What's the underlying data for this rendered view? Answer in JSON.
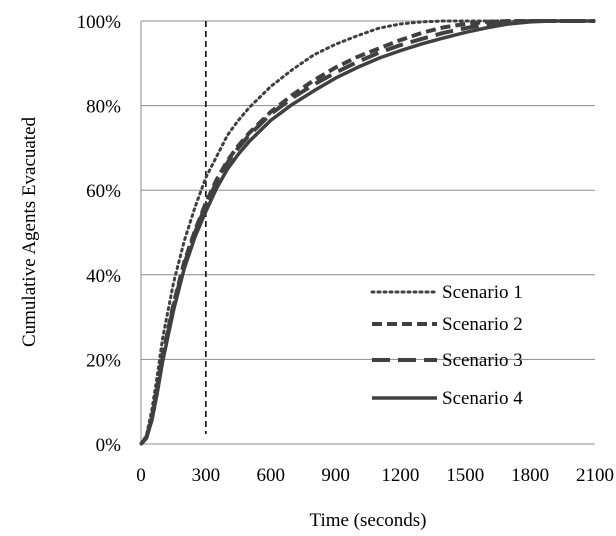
{
  "chart_data": {
    "type": "line",
    "title": "",
    "xlabel": "Time (seconds)",
    "ylabel": "Cumulative Agents  Evacuated",
    "xlim": [
      0,
      2100
    ],
    "ylim": [
      0,
      100
    ],
    "xticks": [
      0,
      300,
      600,
      900,
      1200,
      1500,
      1800,
      2100
    ],
    "xtick_labels": [
      "0",
      "300",
      "600",
      "900",
      "1200",
      "1500",
      "1800",
      "2100"
    ],
    "yticks": [
      0,
      20,
      40,
      60,
      80,
      100
    ],
    "ytick_labels": [
      "0%",
      "20%",
      "40%",
      "60%",
      "80%",
      "100%"
    ],
    "grid": "horizontal",
    "legend_position": "lower-right",
    "reference_line": {
      "x": 300,
      "style": "dashed"
    },
    "series": [
      {
        "name": "Scenario 1",
        "style": "dotted",
        "color": "#404040",
        "x": [
          0,
          25,
          50,
          75,
          100,
          150,
          200,
          250,
          300,
          350,
          400,
          450,
          500,
          600,
          700,
          800,
          900,
          1000,
          1100,
          1200,
          1300,
          1400,
          1500,
          1600,
          1700,
          1800,
          1900,
          2000,
          2100
        ],
        "y": [
          0,
          2,
          8,
          16,
          25,
          38,
          48,
          56,
          63,
          68,
          73,
          76.5,
          79.5,
          84.5,
          88.5,
          92,
          94.5,
          96.5,
          98.3,
          99.3,
          99.8,
          100,
          100,
          100,
          100,
          100,
          100,
          100,
          100
        ]
      },
      {
        "name": "Scenario 2",
        "style": "dashed",
        "color": "#404040",
        "x": [
          0,
          25,
          50,
          75,
          100,
          150,
          200,
          250,
          300,
          350,
          400,
          450,
          500,
          600,
          700,
          800,
          900,
          1000,
          1100,
          1200,
          1300,
          1400,
          1500,
          1600,
          1700,
          1800,
          1900,
          2000,
          2100
        ],
        "y": [
          0,
          1.5,
          6,
          13,
          21,
          33,
          43,
          50.5,
          57,
          62.5,
          67,
          70.5,
          73.5,
          78.5,
          82.5,
          86,
          89,
          91.5,
          93.5,
          95.5,
          97.2,
          98.5,
          99.3,
          99.8,
          100,
          100,
          100,
          100,
          100
        ]
      },
      {
        "name": "Scenario 3",
        "style": "long-dashed",
        "color": "#404040",
        "x": [
          0,
          25,
          50,
          75,
          100,
          150,
          200,
          250,
          300,
          350,
          400,
          450,
          500,
          600,
          700,
          800,
          900,
          1000,
          1100,
          1200,
          1300,
          1400,
          1500,
          1600,
          1700,
          1800,
          1900,
          2000,
          2100
        ],
        "y": [
          0,
          1.5,
          6,
          13,
          20.5,
          32.5,
          42.5,
          50,
          56.5,
          62,
          66.5,
          70,
          73,
          78,
          81.8,
          85,
          87.8,
          90.3,
          92.5,
          94.3,
          95.8,
          97.2,
          98.3,
          99.2,
          99.7,
          100,
          100,
          100,
          100
        ]
      },
      {
        "name": "Scenario 4",
        "style": "solid",
        "color": "#404040",
        "x": [
          0,
          25,
          50,
          75,
          100,
          150,
          200,
          250,
          300,
          350,
          400,
          450,
          500,
          600,
          700,
          800,
          900,
          1000,
          1100,
          1200,
          1300,
          1400,
          1500,
          1600,
          1700,
          1800,
          1900,
          2000,
          2100
        ],
        "y": [
          0,
          1.5,
          5.5,
          12,
          19.5,
          31.5,
          41.5,
          49,
          55,
          60.5,
          65,
          68.5,
          71.5,
          76.5,
          80.3,
          83.5,
          86.5,
          89,
          91.2,
          93,
          94.6,
          96,
          97.3,
          98.4,
          99.3,
          99.8,
          100,
          100,
          100
        ]
      }
    ]
  }
}
